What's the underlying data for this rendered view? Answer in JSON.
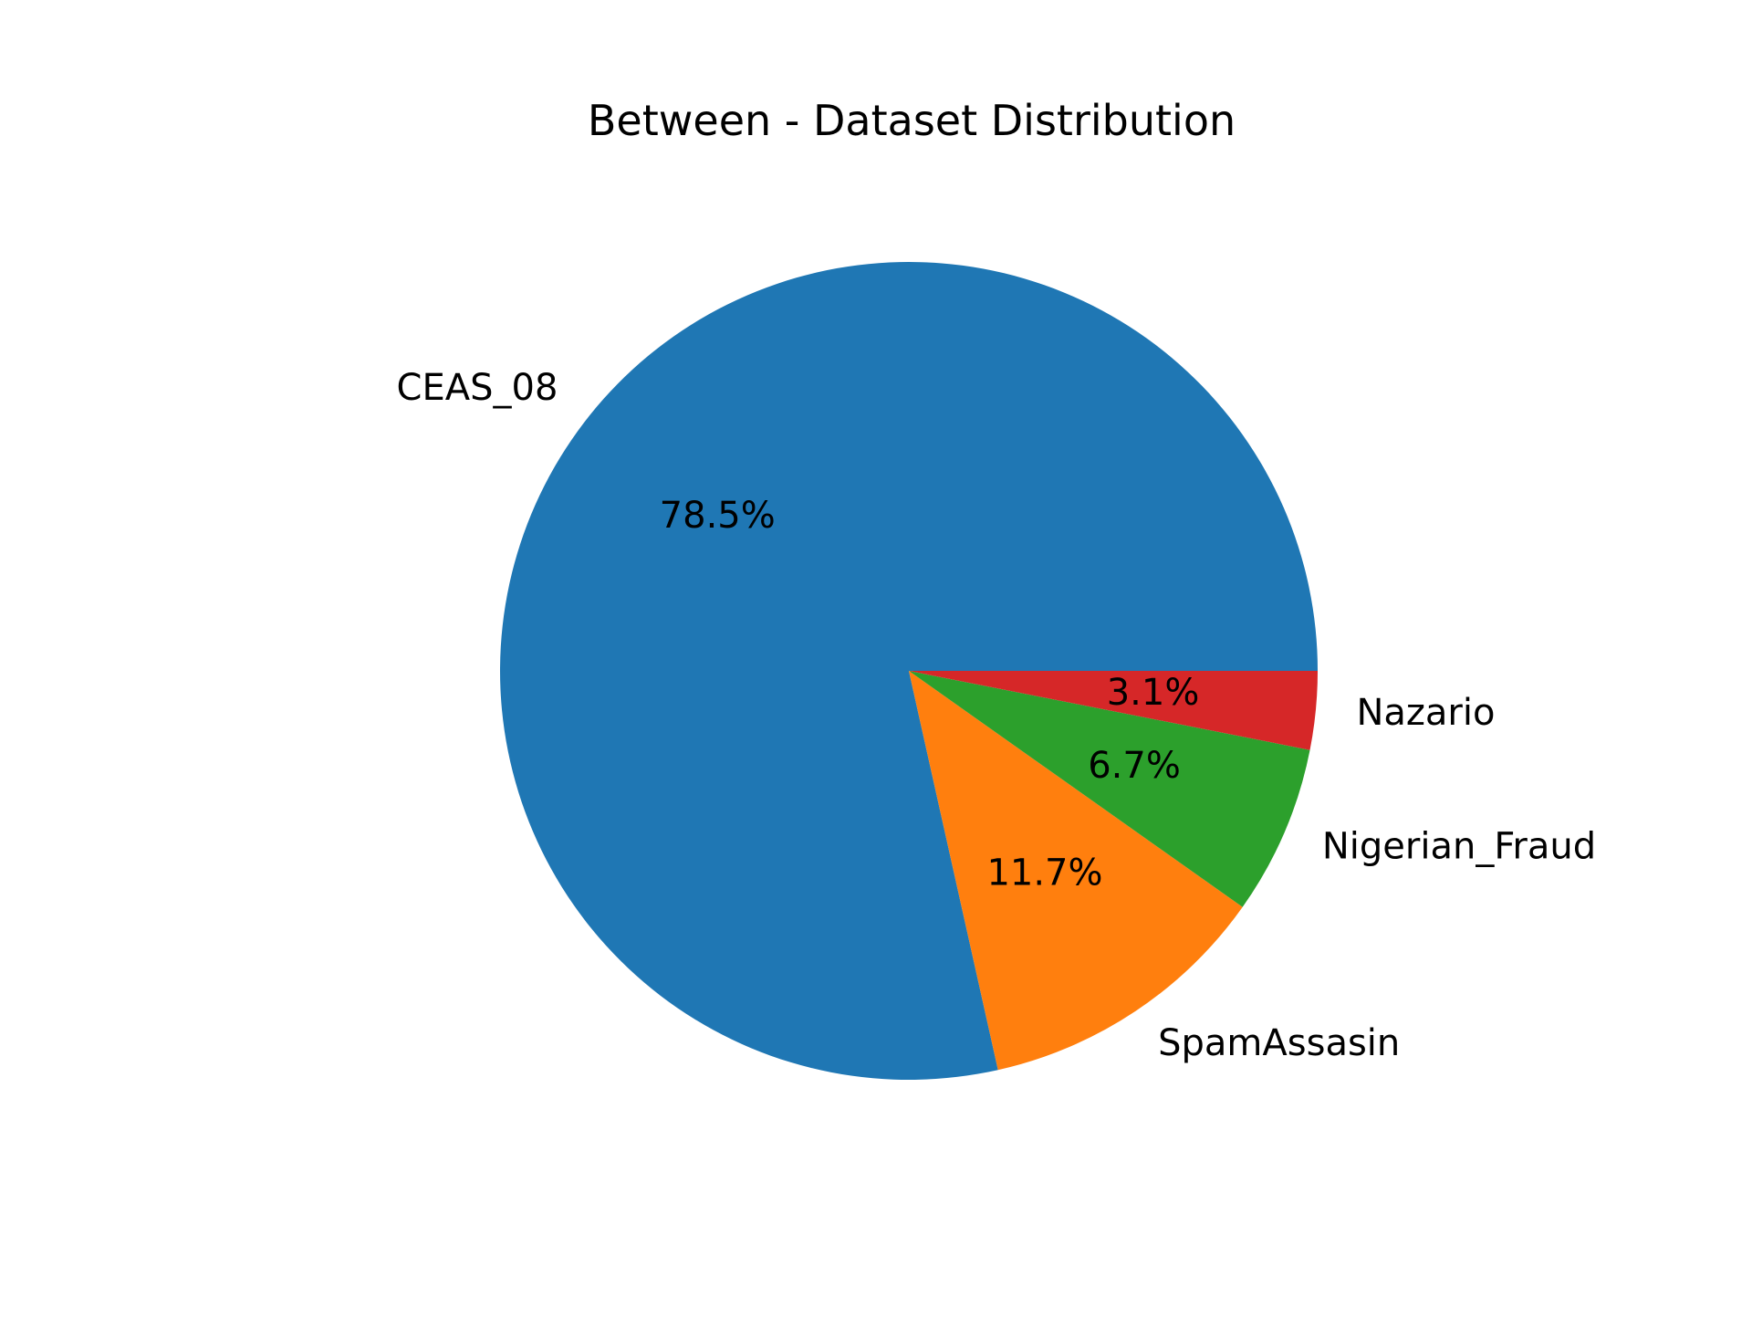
{
  "chart_data": {
    "type": "pie",
    "title": "Between - Dataset Distribution",
    "categories": [
      "CEAS_08",
      "SpamAssasin",
      "Nigerian_Fraud",
      "Nazario"
    ],
    "values": [
      78.5,
      11.7,
      6.7,
      3.1
    ],
    "percent_labels": [
      "78.5%",
      "11.7%",
      "6.7%",
      "3.1%"
    ],
    "colors": [
      "#1f77b4",
      "#ff7f0e",
      "#2ca02c",
      "#d62728"
    ],
    "start_angle_deg": 0,
    "direction": "counterclockwise",
    "legend": "none"
  }
}
